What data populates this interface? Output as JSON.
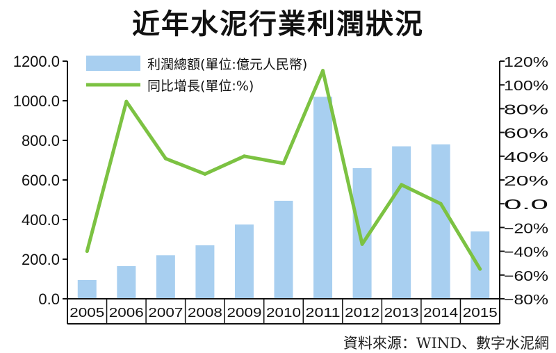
{
  "title": "近年水泥行業利潤狀況",
  "source": "資料來源：WIND、數字水泥網",
  "colors": {
    "bar": "#a8cff0",
    "line": "#7cc242",
    "axis": "#111111"
  },
  "chart_data": {
    "type": "bar",
    "categories": [
      "2005",
      "2006",
      "2007",
      "2008",
      "2009",
      "2010",
      "2011",
      "2012",
      "2013",
      "2014",
      "2015"
    ],
    "series": [
      {
        "name": "利潤總額(單位:億元人民幣)",
        "type": "bar",
        "axis": "left",
        "values": [
          95,
          165,
          220,
          270,
          375,
          495,
          1020,
          660,
          770,
          780,
          340
        ]
      },
      {
        "name": "同比增長(單位:%)",
        "type": "line",
        "axis": "right",
        "values": [
          -40,
          86,
          38,
          25,
          40,
          34,
          112,
          -34,
          16,
          0,
          -55
        ]
      }
    ],
    "ylim_left": [
      0,
      1200
    ],
    "yticks_left": [
      "0.0",
      "200.0",
      "400.0",
      "600.0",
      "800.0",
      "1000.0",
      "1200.0"
    ],
    "ylim_right": [
      -80,
      120
    ],
    "yticks_right": [
      "-80%",
      "-60%",
      "-40%",
      "-20%",
      "0.0",
      "20%",
      "40%",
      "60%",
      "80%",
      "100%",
      "120%"
    ],
    "legend_position": "top-left"
  }
}
